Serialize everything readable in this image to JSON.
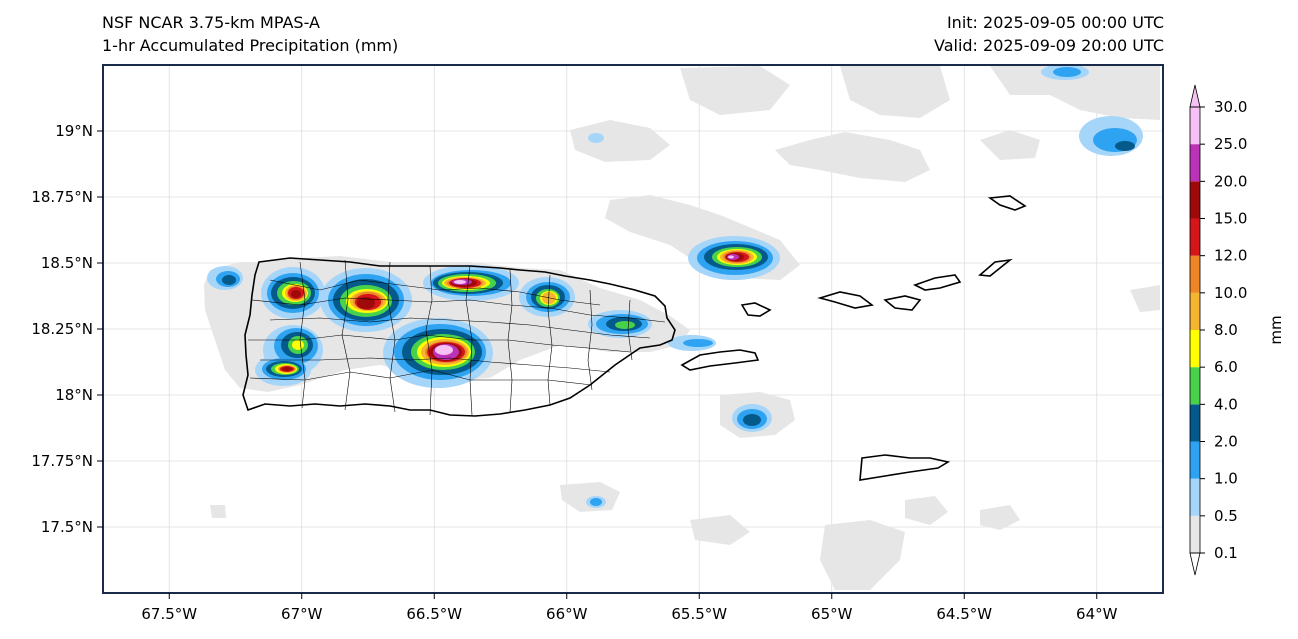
{
  "header": {
    "model": "NSF NCAR 3.75-km MPAS-A",
    "field": "1-hr Accumulated Precipitation (mm)",
    "init": "Init: 2025-09-05 00:00 UTC",
    "valid": "Valid: 2025-09-09 20:00 UTC"
  },
  "map": {
    "lon_range": [
      -67.75,
      -63.75
    ],
    "lat_range": [
      17.25,
      19.25
    ],
    "lat_ticks": [
      {
        "value": 19.0,
        "label": "19°N"
      },
      {
        "value": 18.75,
        "label": "18.75°N"
      },
      {
        "value": 18.5,
        "label": "18.5°N"
      },
      {
        "value": 18.25,
        "label": "18.25°N"
      },
      {
        "value": 18.0,
        "label": "18°N"
      },
      {
        "value": 17.75,
        "label": "17.75°N"
      },
      {
        "value": 17.5,
        "label": "17.5°N"
      }
    ],
    "lon_ticks": [
      {
        "value": -67.5,
        "label": "67.5°W"
      },
      {
        "value": -67.0,
        "label": "67°W"
      },
      {
        "value": -66.5,
        "label": "66.5°W"
      },
      {
        "value": -66.0,
        "label": "66°W"
      },
      {
        "value": -65.5,
        "label": "65.5°W"
      },
      {
        "value": -65.0,
        "label": "65°W"
      },
      {
        "value": -64.5,
        "label": "64.5°W"
      },
      {
        "value": -64.0,
        "label": "64°W"
      }
    ],
    "gridlines": true
  },
  "colorbar": {
    "unit": "mm",
    "levels": [
      {
        "label": "0.1",
        "color": "#e6e6e6"
      },
      {
        "label": "0.5",
        "color": "#a6d5fa"
      },
      {
        "label": "1.0",
        "color": "#2ea3f2"
      },
      {
        "label": "2.0",
        "color": "#055a8c"
      },
      {
        "label": "4.0",
        "color": "#48d14b"
      },
      {
        "label": "6.0",
        "color": "#ffff00"
      },
      {
        "label": "8.0",
        "color": "#f6b531"
      },
      {
        "label": "10.0",
        "color": "#ef8626"
      },
      {
        "label": "12.0",
        "color": "#d4151a"
      },
      {
        "label": "15.0",
        "color": "#9e0a0a"
      },
      {
        "label": "20.0",
        "color": "#bc32b6"
      },
      {
        "label": "25.0",
        "color": "#f6c1f4"
      },
      {
        "label": "30.0",
        "color": ""
      }
    ]
  }
}
